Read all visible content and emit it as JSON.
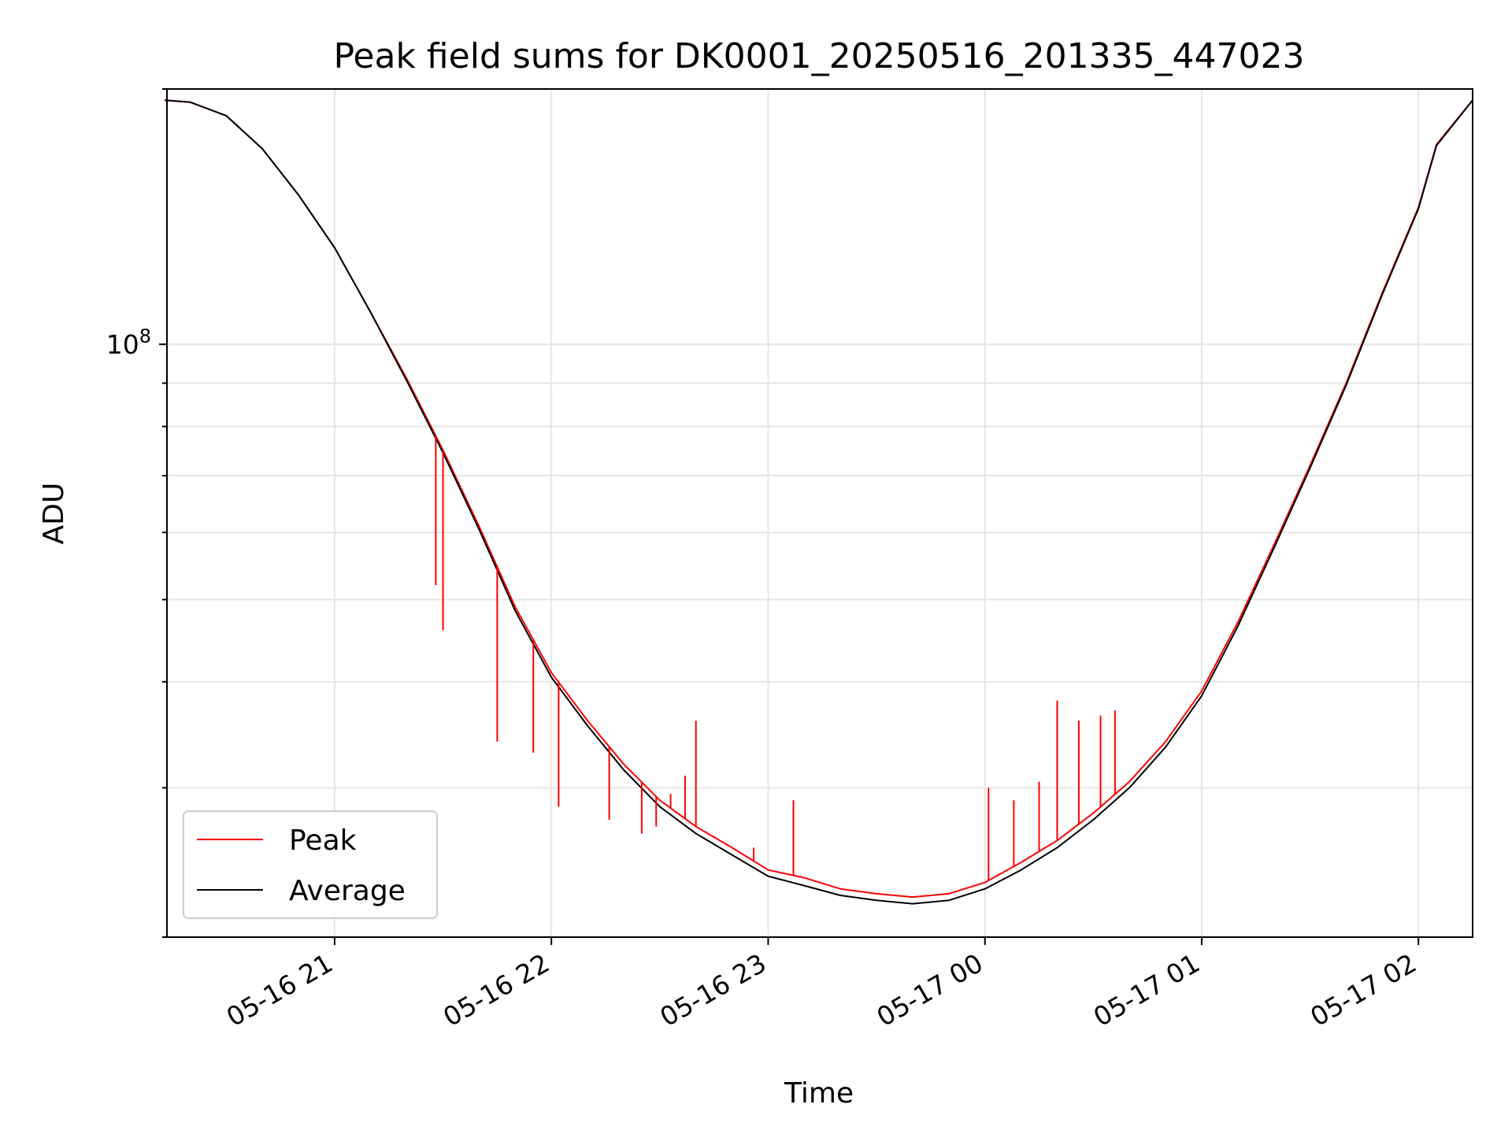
{
  "chart_data": {
    "type": "line",
    "title": "Peak field sums for DK0001_20250516_201335_447023",
    "xlabel": "Time",
    "ylabel": "ADU",
    "yscale": "log",
    "ylim": [
      20000000,
      200000000
    ],
    "xlim": [
      "2025-05-16 20:13:35",
      "2025-05-17 02:15:00"
    ],
    "grid": true,
    "legend_position": "lower-left",
    "x_ticks": [
      "05-16 21",
      "05-16 22",
      "05-16 23",
      "05-17 00",
      "05-17 01",
      "05-17 02"
    ],
    "y_ticks": [
      {
        "value": 100000000,
        "base": "10",
        "exp": "8"
      }
    ],
    "series": [
      {
        "name": "Peak",
        "color": "#ff0000",
        "x": [
          "2025-05-16 20:13",
          "2025-05-16 20:20",
          "2025-05-16 20:30",
          "2025-05-16 20:40",
          "2025-05-16 20:50",
          "2025-05-16 21:00",
          "2025-05-16 21:10",
          "2025-05-16 21:20",
          "2025-05-16 21:30",
          "2025-05-16 21:40",
          "2025-05-16 21:50",
          "2025-05-16 22:00",
          "2025-05-16 22:10",
          "2025-05-16 22:20",
          "2025-05-16 22:30",
          "2025-05-16 22:40",
          "2025-05-16 22:50",
          "2025-05-16 23:00",
          "2025-05-16 23:10",
          "2025-05-16 23:20",
          "2025-05-16 23:30",
          "2025-05-16 23:40",
          "2025-05-16 23:50",
          "2025-05-17 00:00",
          "2025-05-17 00:10",
          "2025-05-17 00:20",
          "2025-05-17 00:30",
          "2025-05-17 00:40",
          "2025-05-17 00:50",
          "2025-05-17 01:00",
          "2025-05-17 01:10",
          "2025-05-17 01:20",
          "2025-05-17 01:30",
          "2025-05-17 01:40",
          "2025-05-17 01:50",
          "2025-05-17 02:00",
          "2025-05-17 02:05",
          "2025-05-17 02:15"
        ],
        "y": [
          194000000,
          193000000,
          186000000,
          170000000,
          150000000,
          130000000,
          109000000,
          91000000,
          75000000,
          61000000,
          49000000,
          41000000,
          36000000,
          32000000,
          29000000,
          27000000,
          25500000,
          24000000,
          23500000,
          22800000,
          22500000,
          22300000,
          22500000,
          23200000,
          24500000,
          26000000,
          28000000,
          30500000,
          34000000,
          39000000,
          47000000,
          58000000,
          72000000,
          90000000,
          115000000,
          145000000,
          172000000,
          194000000
        ]
      },
      {
        "name": "Average",
        "color": "#000000",
        "x": [
          "2025-05-16 20:13",
          "2025-05-16 20:20",
          "2025-05-16 20:30",
          "2025-05-16 20:40",
          "2025-05-16 20:50",
          "2025-05-16 21:00",
          "2025-05-16 21:10",
          "2025-05-16 21:20",
          "2025-05-16 21:30",
          "2025-05-16 21:40",
          "2025-05-16 21:50",
          "2025-05-16 22:00",
          "2025-05-16 22:10",
          "2025-05-16 22:20",
          "2025-05-16 22:30",
          "2025-05-16 22:40",
          "2025-05-16 22:50",
          "2025-05-16 23:00",
          "2025-05-16 23:10",
          "2025-05-16 23:20",
          "2025-05-16 23:30",
          "2025-05-16 23:40",
          "2025-05-16 23:50",
          "2025-05-17 00:00",
          "2025-05-17 00:10",
          "2025-05-17 00:20",
          "2025-05-17 00:30",
          "2025-05-17 00:40",
          "2025-05-17 00:50",
          "2025-05-17 01:00",
          "2025-05-17 01:10",
          "2025-05-17 01:20",
          "2025-05-17 01:30",
          "2025-05-17 01:40",
          "2025-05-17 01:50",
          "2025-05-17 02:00",
          "2025-05-17 02:05",
          "2025-05-17 02:15"
        ],
        "y": [
          194000000,
          193000000,
          186000000,
          170000000,
          150000000,
          130000000,
          109000000,
          90500000,
          74500000,
          60500000,
          48500000,
          40500000,
          35500000,
          31500000,
          28500000,
          26500000,
          25000000,
          23600000,
          23000000,
          22400000,
          22100000,
          21900000,
          22100000,
          22800000,
          24000000,
          25500000,
          27500000,
          30000000,
          33500000,
          38500000,
          46500000,
          57500000,
          71500000,
          89500000,
          114500000,
          144500000,
          171500000,
          194000000
        ]
      }
    ],
    "spikes": [
      {
        "series": "Peak",
        "x": "2025-05-16 21:28",
        "y": 52000000
      },
      {
        "series": "Peak",
        "x": "2025-05-16 21:30",
        "y": 46000000
      },
      {
        "series": "Peak",
        "x": "2025-05-16 21:45",
        "y": 34000000
      },
      {
        "series": "Peak",
        "x": "2025-05-16 21:55",
        "y": 33000000
      },
      {
        "series": "Peak",
        "x": "2025-05-16 22:02",
        "y": 28500000
      },
      {
        "series": "Peak",
        "x": "2025-05-16 22:16",
        "y": 27500000
      },
      {
        "series": "Peak",
        "x": "2025-05-16 22:25",
        "y": 26500000
      },
      {
        "series": "Peak",
        "x": "2025-05-16 22:29",
        "y": 27000000
      },
      {
        "series": "Peak",
        "x": "2025-05-16 22:33",
        "y": 29500000
      },
      {
        "series": "Peak",
        "x": "2025-05-16 22:37",
        "y": 31000000
      },
      {
        "series": "Peak",
        "x": "2025-05-16 22:40",
        "y": 36000000
      },
      {
        "series": "Peak",
        "x": "2025-05-16 22:56",
        "y": 25500000
      },
      {
        "series": "Peak",
        "x": "2025-05-16 23:07",
        "y": 29000000
      },
      {
        "series": "Peak",
        "x": "2025-05-17 00:01",
        "y": 30000000
      },
      {
        "series": "Peak",
        "x": "2025-05-17 00:08",
        "y": 29000000
      },
      {
        "series": "Peak",
        "x": "2025-05-17 00:15",
        "y": 30500000
      },
      {
        "series": "Peak",
        "x": "2025-05-17 00:20",
        "y": 38000000
      },
      {
        "series": "Peak",
        "x": "2025-05-17 00:26",
        "y": 36000000
      },
      {
        "series": "Peak",
        "x": "2025-05-17 00:32",
        "y": 36500000
      },
      {
        "series": "Peak",
        "x": "2025-05-17 00:36",
        "y": 37000000
      }
    ]
  }
}
